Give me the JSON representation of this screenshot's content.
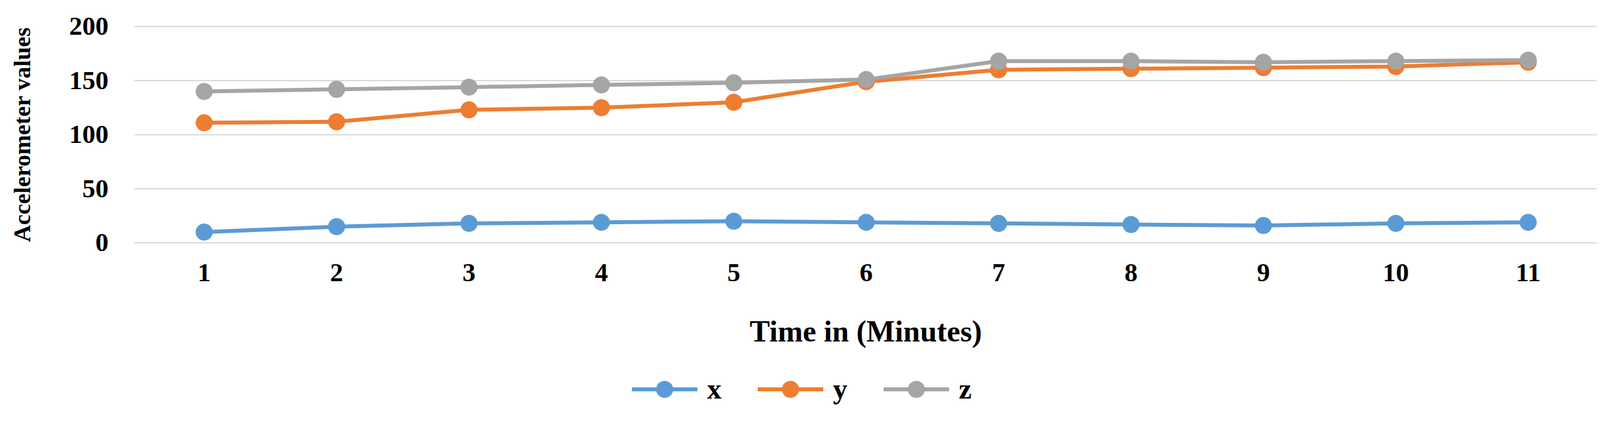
{
  "chart_data": {
    "type": "line",
    "x_label": "Time in (Minutes)",
    "y_label": "Accelerometer values",
    "categories": [
      "1",
      "2",
      "3",
      "4",
      "5",
      "6",
      "7",
      "8",
      "9",
      "10",
      "11"
    ],
    "series": [
      {
        "name": "x",
        "color": "#5b9bd5",
        "values": [
          10,
          15,
          18,
          19,
          20,
          19,
          18,
          17,
          16,
          18,
          19
        ]
      },
      {
        "name": "y",
        "color": "#ed7d31",
        "values": [
          111,
          112,
          123,
          125,
          130,
          149,
          160,
          161,
          162,
          163,
          167
        ]
      },
      {
        "name": "z",
        "color": "#a5a5a5",
        "values": [
          140,
          142,
          144,
          146,
          148,
          151,
          168,
          168,
          167,
          168,
          169
        ]
      }
    ],
    "ylim": [
      0,
      200
    ],
    "yticks": [
      0,
      50,
      100,
      150,
      200
    ],
    "grid": true,
    "legend": "bottom",
    "marker": "circle"
  }
}
